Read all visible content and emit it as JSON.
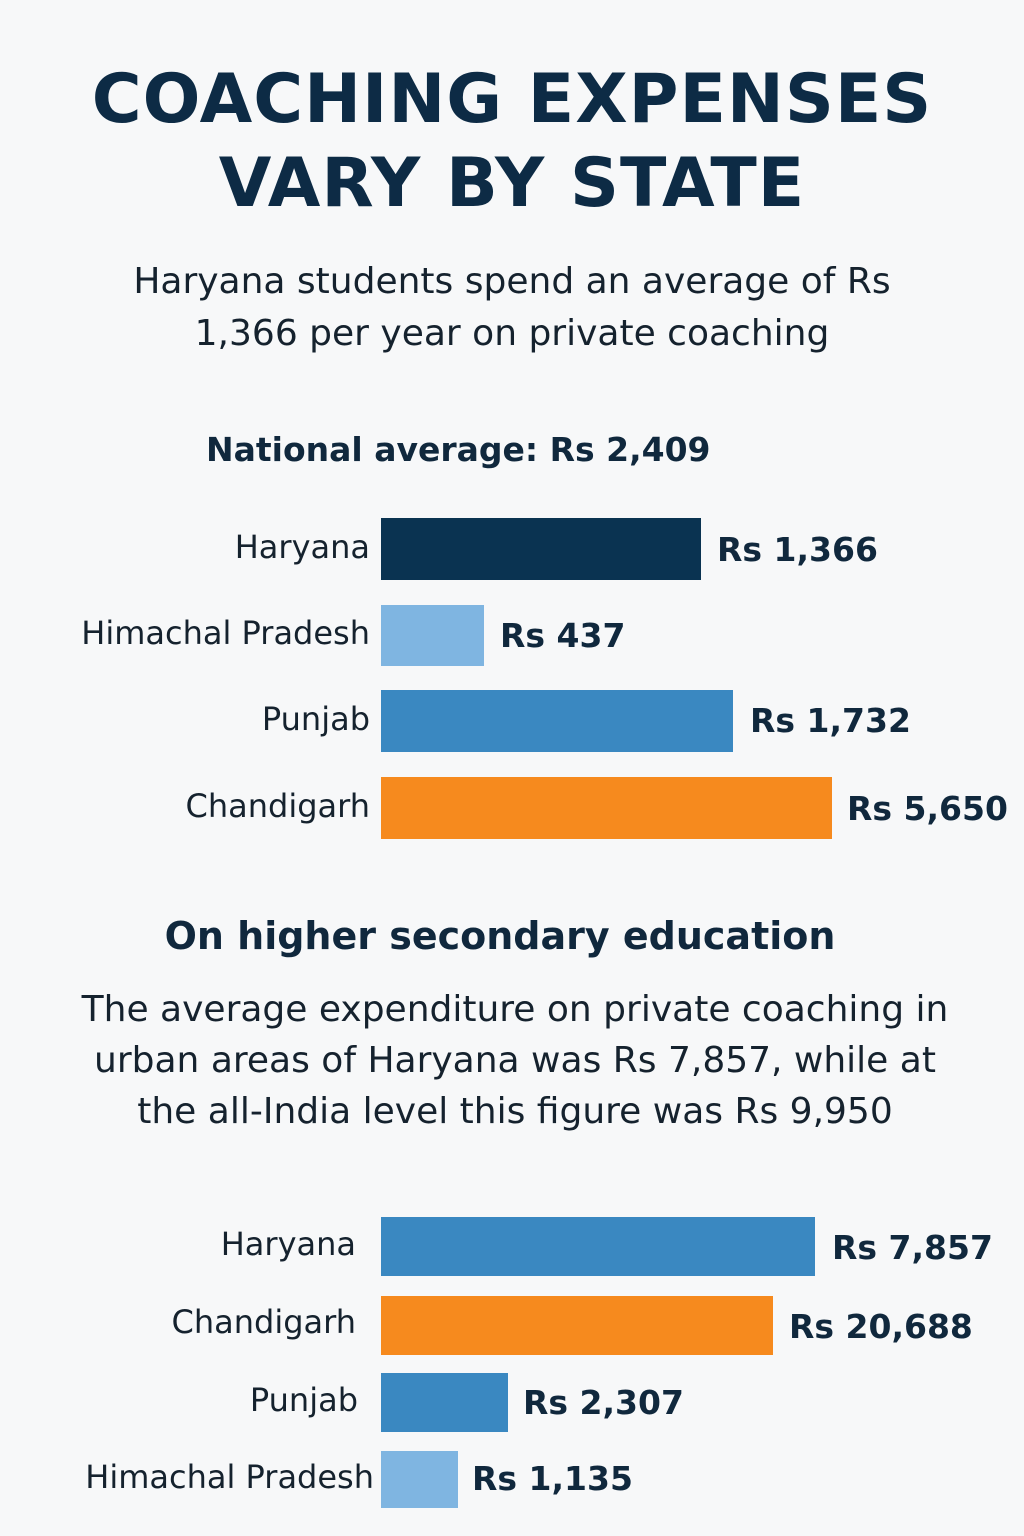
{
  "title_line1": "COACHING EXPENSES",
  "title_line2": "VARY BY STATE",
  "subtitle": "Haryana students spend an average of Rs 1,366 per year on private coaching",
  "colors": {
    "haryana_dark": "#0a3351",
    "light_blue": "#7fb5e1",
    "mid_blue": "#3a88c1",
    "orange": "#f68a1e"
  },
  "chart_data": [
    {
      "type": "bar",
      "orientation": "horizontal",
      "title": "National average: Rs 2,409",
      "categories": [
        "Haryana",
        "Himachal Pradesh",
        "Punjab",
        "Chandigarh"
      ],
      "values": [
        1366,
        437,
        1732,
        5650
      ],
      "labels": [
        "Rs 1,366",
        "Rs 437",
        "Rs 1,732",
        "Rs 5,650"
      ],
      "unit": "Rs per year"
    },
    {
      "type": "bar",
      "orientation": "horizontal",
      "title": "On higher secondary education",
      "description": "The average expenditure on private coaching in urban areas of Haryana was Rs 7,857, while at the all-India level this figure was Rs 9,950",
      "categories": [
        "Haryana",
        "Chandigarh",
        "Punjab",
        "Himachal Pradesh"
      ],
      "values": [
        7857,
        20688,
        2307,
        1135
      ],
      "labels": [
        "Rs 7,857",
        "Rs 20,688",
        "Rs 2,307",
        "Rs 1,135"
      ],
      "unit": "Rs"
    }
  ]
}
